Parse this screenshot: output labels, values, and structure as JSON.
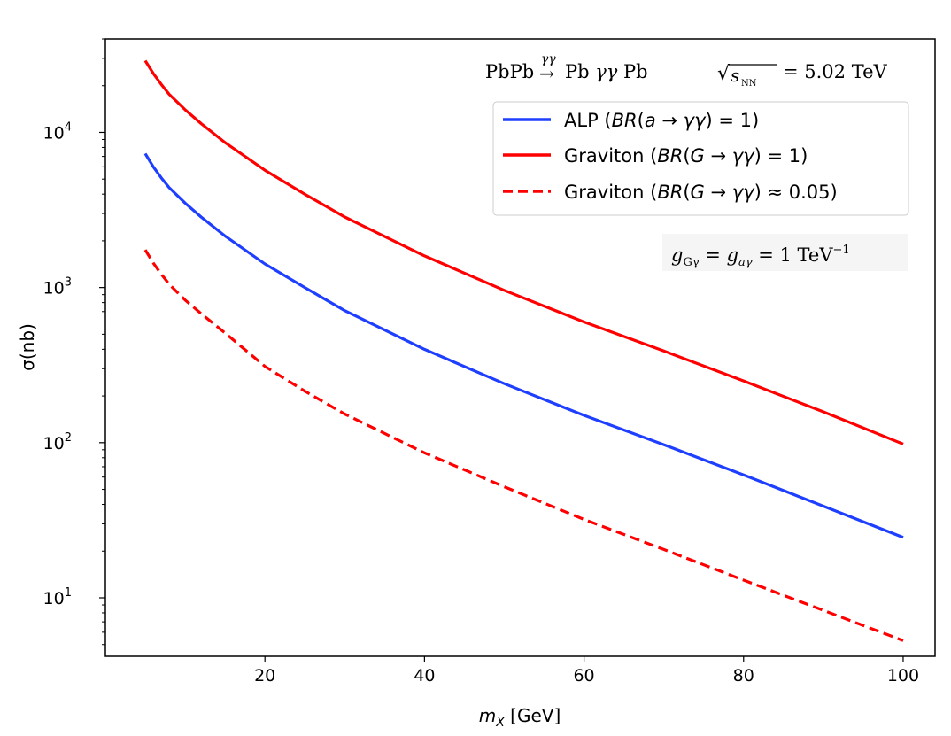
{
  "chart_data": {
    "type": "line",
    "title": "PbPb → Pb γγ Pb  √s_NN = 5.02 TeV",
    "annotation": "g_Gγ = g_aγ = 1 TeV⁻¹",
    "xlabel": "m_X [GeV]",
    "ylabel": "σ(nb)",
    "yscale": "log",
    "xlim": [
      0,
      104
    ],
    "ylim": [
      4.2,
      40000
    ],
    "x_ticks": [
      20,
      40,
      60,
      80,
      100
    ],
    "y_ticks": [
      {
        "value": 10,
        "base": "10",
        "exp": "1"
      },
      {
        "value": 100,
        "base": "10",
        "exp": "2"
      },
      {
        "value": 1000,
        "base": "10",
        "exp": "3"
      },
      {
        "value": 10000,
        "base": "10",
        "exp": "4"
      }
    ],
    "x": [
      5,
      6,
      7,
      8,
      10,
      12,
      15,
      20,
      25,
      30,
      40,
      50,
      60,
      70,
      80,
      90,
      100
    ],
    "series": [
      {
        "name": "ALP",
        "legend_label": "ALP  (BR(a→γγ) = 1)",
        "color": "#1f3fff",
        "style": "solid",
        "values": [
          7300,
          6000,
          5100,
          4400,
          3500,
          2850,
          2150,
          1420,
          1000,
          710,
          400,
          240,
          150,
          97,
          62,
          39,
          24.5
        ]
      },
      {
        "name": "Graviton",
        "legend_label": "Graviton (BR(G→γγ) = 1)",
        "color": "#ff0000",
        "style": "solid",
        "values": [
          29000,
          24000,
          20400,
          17600,
          14000,
          11400,
          8600,
          5700,
          4000,
          2850,
          1600,
          960,
          600,
          390,
          250,
          158,
          98
        ]
      },
      {
        "name": "Graviton (BR≈0.05)",
        "legend_label": "Graviton (BR(G→γγ) ≈ 0.05)",
        "color": "#ff0000",
        "style": "dashed",
        "values": [
          1750,
          1440,
          1220,
          1050,
          830,
          680,
          510,
          310,
          215,
          153,
          86,
          52,
          32,
          20.5,
          13,
          8.3,
          5.3
        ]
      }
    ],
    "legend_position": "top-right"
  }
}
